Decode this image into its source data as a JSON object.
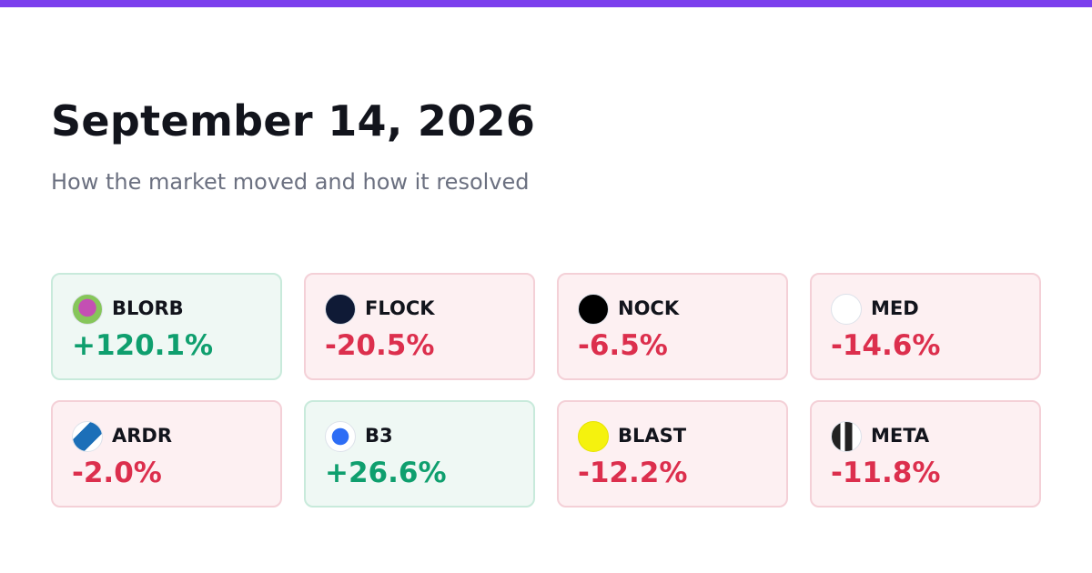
{
  "header": {
    "title": "September 14, 2026",
    "subtitle": "How the market moved and how it resolved"
  },
  "cards": [
    {
      "symbol": "BLORB",
      "change": "+120.1%"
    },
    {
      "symbol": "FLOCK",
      "change": "-20.5%"
    },
    {
      "symbol": "NOCK",
      "change": "-6.5%"
    },
    {
      "symbol": "MED",
      "change": "-14.6%"
    },
    {
      "symbol": "ARDR",
      "change": "-2.0%"
    },
    {
      "symbol": "B3",
      "change": "+26.6%"
    },
    {
      "symbol": "BLAST",
      "change": "-12.2%"
    },
    {
      "symbol": "META",
      "change": "-11.8%"
    }
  ]
}
